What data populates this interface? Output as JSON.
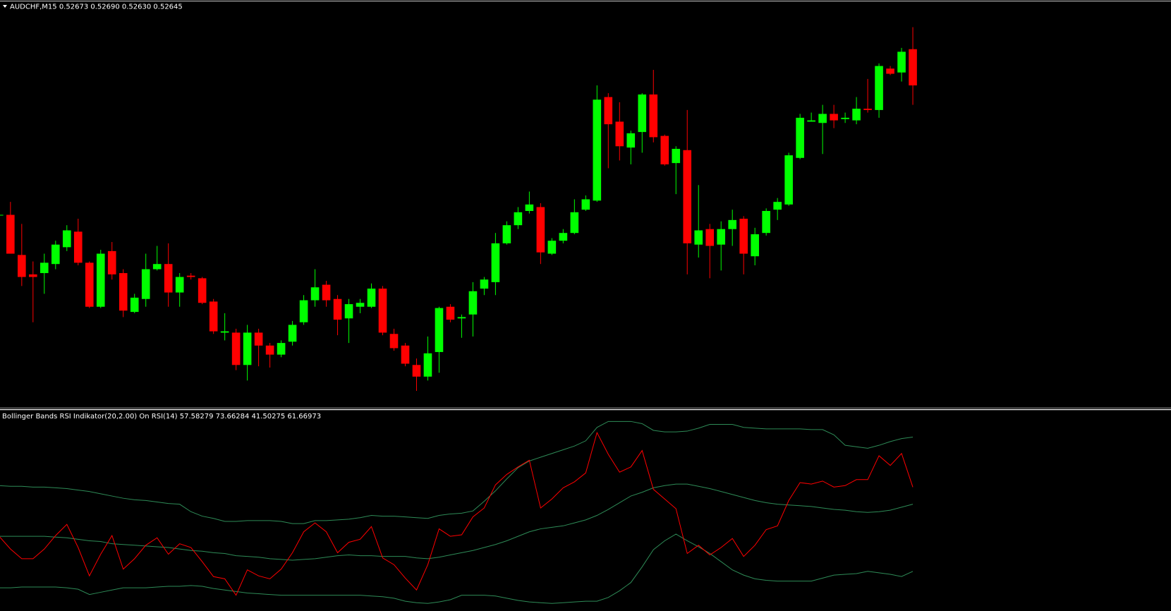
{
  "chart_data": [
    {
      "type": "candlestick",
      "title": "AUDCHF,M15  0.52673 0.52690 0.52630 0.52645",
      "up_color": "#00ff00",
      "down_color": "#ff0000",
      "ylim": [
        0.52397,
        0.52702
      ],
      "open": [
        0.52545,
        0.52545,
        0.52514,
        0.52499,
        0.525,
        0.52507,
        0.5252,
        0.52532,
        0.52508,
        0.52474,
        0.52517,
        0.525,
        0.5247,
        0.5248,
        0.52503,
        0.52507,
        0.52485,
        0.52498,
        0.52496,
        0.52478,
        0.52454,
        0.52454,
        0.52429,
        0.52454,
        0.52444,
        0.52437,
        0.52447,
        0.52462,
        0.52479,
        0.52491,
        0.5248,
        0.52465,
        0.52474,
        0.52474,
        0.52488,
        0.52453,
        0.52444,
        0.52429,
        0.5242,
        0.52439,
        0.52474,
        0.52465,
        0.52468,
        0.52488,
        0.52493,
        0.52523,
        0.52537,
        0.52548,
        0.52551,
        0.52515,
        0.52525,
        0.52531,
        0.52549,
        0.52556,
        0.52636,
        0.52617,
        0.52597,
        0.52609,
        0.52638,
        0.52606,
        0.52585,
        0.52595,
        0.52522,
        0.52534,
        0.52522,
        0.52534,
        0.52542,
        0.52513,
        0.52531,
        0.52549,
        0.52553,
        0.52589,
        0.52617,
        0.52616,
        0.52623,
        0.52619,
        0.52618,
        0.52627,
        0.52626,
        0.52658,
        0.52655,
        0.52673
      ],
      "high": [
        0.52546,
        0.52555,
        0.52538,
        0.52509,
        0.52515,
        0.52525,
        0.52537,
        0.52542,
        0.52509,
        0.52518,
        0.52524,
        0.52503,
        0.52484,
        0.52515,
        0.52521,
        0.52523,
        0.525,
        0.525,
        0.52497,
        0.5248,
        0.52469,
        0.52457,
        0.5246,
        0.52457,
        0.52446,
        0.52448,
        0.52463,
        0.52483,
        0.52503,
        0.52494,
        0.52483,
        0.5248,
        0.5248,
        0.52492,
        0.5249,
        0.52457,
        0.52446,
        0.52434,
        0.52451,
        0.52474,
        0.52476,
        0.52468,
        0.52493,
        0.52497,
        0.52531,
        0.5254,
        0.52551,
        0.52563,
        0.52554,
        0.52527,
        0.52534,
        0.52557,
        0.5256,
        0.52645,
        0.52639,
        0.52632,
        0.5261,
        0.52639,
        0.52657,
        0.52607,
        0.52598,
        0.52626,
        0.52568,
        0.52538,
        0.5254,
        0.52549,
        0.52544,
        0.52535,
        0.5255,
        0.52558,
        0.52593,
        0.52623,
        0.52624,
        0.5263,
        0.5263,
        0.52624,
        0.52636,
        0.5265,
        0.52662,
        0.5266,
        0.52674,
        0.5269
      ],
      "low": [
        0.52545,
        0.52515,
        0.5249,
        0.52462,
        0.52484,
        0.52503,
        0.52517,
        0.52506,
        0.52473,
        0.52473,
        0.52495,
        0.52466,
        0.52469,
        0.52474,
        0.52502,
        0.52474,
        0.52474,
        0.52495,
        0.52476,
        0.52453,
        0.52448,
        0.52425,
        0.52417,
        0.52428,
        0.52427,
        0.52435,
        0.52444,
        0.5246,
        0.52474,
        0.52474,
        0.52452,
        0.52446,
        0.52469,
        0.52473,
        0.52452,
        0.5244,
        0.52428,
        0.52409,
        0.52417,
        0.52423,
        0.52462,
        0.5245,
        0.52451,
        0.52483,
        0.52483,
        0.52522,
        0.52534,
        0.52546,
        0.52507,
        0.52514,
        0.52523,
        0.5253,
        0.52548,
        0.52555,
        0.52581,
        0.52587,
        0.52584,
        0.52593,
        0.52601,
        0.52583,
        0.52561,
        0.52499,
        0.52512,
        0.52496,
        0.52502,
        0.52521,
        0.52499,
        0.52506,
        0.52529,
        0.52541,
        0.52552,
        0.52588,
        0.52617,
        0.52592,
        0.52612,
        0.52616,
        0.52615,
        0.52624,
        0.5262,
        0.52653,
        0.52648,
        0.5263
      ],
      "close": [
        0.52545,
        0.52515,
        0.52497,
        0.52497,
        0.52508,
        0.52522,
        0.52533,
        0.52508,
        0.52474,
        0.52515,
        0.52499,
        0.52471,
        0.52481,
        0.52503,
        0.52507,
        0.52485,
        0.52497,
        0.52497,
        0.52477,
        0.52455,
        0.52455,
        0.52429,
        0.52454,
        0.52444,
        0.52437,
        0.52446,
        0.5246,
        0.52479,
        0.52489,
        0.52479,
        0.52464,
        0.52476,
        0.52477,
        0.52488,
        0.52454,
        0.52442,
        0.5243,
        0.5242,
        0.52438,
        0.52473,
        0.52464,
        0.52466,
        0.52486,
        0.52495,
        0.52523,
        0.52537,
        0.52547,
        0.52553,
        0.52516,
        0.52525,
        0.52531,
        0.52547,
        0.52557,
        0.52634,
        0.52615,
        0.52598,
        0.52608,
        0.52638,
        0.52605,
        0.52584,
        0.52596,
        0.52523,
        0.52533,
        0.52521,
        0.52534,
        0.52541,
        0.52515,
        0.5253,
        0.52548,
        0.52555,
        0.52591,
        0.5262,
        0.52618,
        0.52623,
        0.52618,
        0.5262,
        0.52627,
        0.52626,
        0.5266,
        0.52654,
        0.52671,
        0.52645
      ]
    },
    {
      "type": "line",
      "title": "Bollinger Bands RSI Indikator(20,2.00) On RSI(14) 57.58279 73.66284 41.50275 61.66973",
      "ylim": [
        32,
        80
      ],
      "series": [
        {
          "color": "#2e8b57",
          "values": [
            49.89,
            49.89,
            49.89,
            49.89,
            49.89,
            49.71,
            49.53,
            49.18,
            48.82,
            48.64,
            48.11,
            47.93,
            47.75,
            47.57,
            47.39,
            47.21,
            46.85,
            46.5,
            46.32,
            45.96,
            45.78,
            45.25,
            45.07,
            44.89,
            44.53,
            44.35,
            44.17,
            44.35,
            44.53,
            44.89,
            45.25,
            45.43,
            45.25,
            45.25,
            45.07,
            45.07,
            45.07,
            44.71,
            44.53,
            44.89,
            45.43,
            45.96,
            46.5,
            47.21,
            47.93,
            48.82,
            49.89,
            50.97,
            51.68,
            52.04,
            52.4,
            53.11,
            53.83,
            54.9,
            56.33,
            57.94,
            59.54,
            60.44,
            61.51,
            62.04,
            62.4,
            62.4,
            61.87,
            61.33,
            60.62,
            59.9,
            59.19,
            58.47,
            57.94,
            57.58,
            57.4,
            57.22,
            57.04,
            56.68,
            56.33,
            56.15,
            55.79,
            55.61,
            55.79,
            56.15,
            56.86,
            57.58279
          ]
        },
        {
          "color": "#2e8b57",
          "values": [
            62.04,
            61.87,
            61.87,
            61.69,
            61.69,
            61.51,
            61.33,
            60.97,
            60.62,
            60.08,
            59.54,
            59.01,
            58.65,
            58.47,
            58.11,
            57.76,
            57.58,
            55.79,
            54.72,
            54.18,
            53.47,
            53.47,
            53.65,
            53.65,
            53.65,
            53.47,
            52.93,
            52.93,
            53.65,
            53.65,
            53.82,
            54.0,
            54.36,
            54.9,
            54.72,
            54.72,
            54.54,
            54.36,
            54.18,
            54.9,
            55.25,
            55.43,
            55.97,
            58.29,
            60.79,
            63.65,
            66.33,
            67.94,
            68.84,
            69.73,
            70.62,
            71.52,
            72.77,
            75.98,
            77.41,
            77.41,
            77.41,
            76.88,
            75.27,
            74.91,
            74.91,
            75.09,
            75.8,
            76.7,
            76.7,
            76.7,
            75.98,
            75.8,
            75.63,
            75.63,
            75.63,
            75.63,
            75.45,
            75.45,
            74.2,
            71.69,
            71.34,
            70.98,
            71.69,
            72.59,
            73.3,
            73.66284
          ]
        },
        {
          "color": "#2e8b57",
          "values": [
            37.56,
            37.56,
            37.74,
            37.74,
            37.74,
            37.74,
            37.56,
            37.21,
            35.95,
            36.49,
            37.03,
            37.56,
            37.56,
            37.56,
            37.74,
            37.92,
            37.92,
            38.1,
            37.92,
            37.38,
            37.03,
            36.67,
            36.31,
            36.13,
            35.95,
            35.78,
            35.78,
            35.78,
            35.78,
            35.78,
            35.78,
            35.78,
            35.78,
            35.6,
            35.42,
            35.06,
            34.35,
            33.99,
            33.81,
            34.17,
            34.7,
            35.78,
            35.78,
            35.78,
            35.6,
            35.06,
            34.53,
            34.17,
            33.99,
            33.81,
            33.99,
            34.17,
            34.35,
            34.35,
            35.24,
            36.85,
            38.81,
            42.57,
            46.68,
            48.82,
            50.43,
            48.82,
            47.39,
            45.78,
            43.82,
            41.85,
            40.6,
            39.71,
            39.35,
            39.17,
            39.17,
            39.17,
            39.17,
            39.88,
            40.6,
            40.78,
            40.96,
            41.5,
            41.14,
            40.78,
            40.26,
            41.50275
          ]
        },
        {
          "color": "#ff0000",
          "values": [
            49.89,
            46.85,
            44.53,
            44.53,
            46.85,
            50.07,
            52.75,
            47.21,
            40.42,
            45.6,
            50.07,
            42.03,
            44.53,
            47.75,
            49.54,
            45.6,
            48.11,
            47.21,
            43.82,
            40.24,
            39.71,
            35.78,
            41.85,
            40.42,
            39.71,
            42.03,
            45.96,
            50.97,
            53.11,
            50.97,
            45.96,
            48.46,
            49.18,
            52.22,
            44.71,
            43.1,
            39.89,
            37.03,
            43.1,
            51.68,
            49.89,
            50.25,
            54.54,
            56.68,
            62.22,
            64.72,
            66.51,
            68.12,
            56.68,
            58.83,
            61.51,
            62.94,
            65.08,
            74.73,
            69.55,
            65.26,
            66.51,
            70.44,
            61.15,
            58.83,
            56.5,
            45.78,
            47.75,
            45.43,
            47.21,
            49.36,
            45.07,
            47.75,
            51.5,
            52.39,
            58.47,
            62.76,
            62.4,
            63.12,
            61.69,
            62.04,
            63.47,
            63.47,
            69.19,
            66.87,
            69.73,
            61.66973
          ]
        }
      ]
    }
  ]
}
